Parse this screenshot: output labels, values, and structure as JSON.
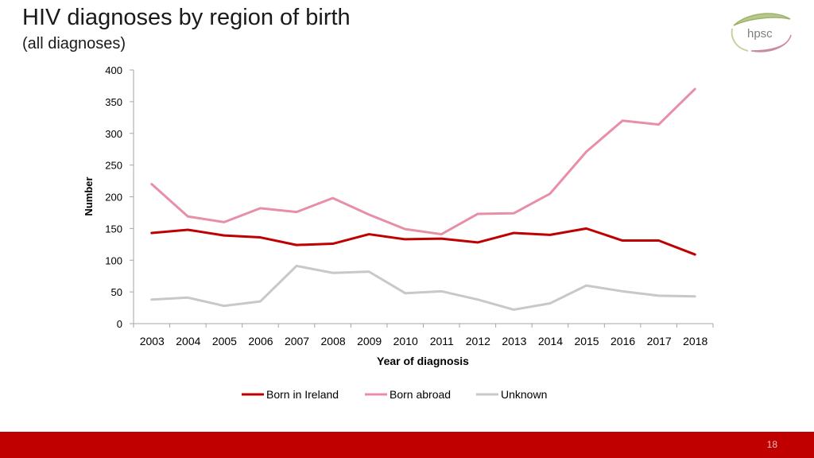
{
  "slide": {
    "title": "HIV diagnoses by region of birth",
    "subtitle": "(all diagnoses)",
    "logo_text": "hpsc",
    "page_number": "18",
    "footer_color": "#c00000"
  },
  "chart_data": {
    "type": "line",
    "title": "",
    "xlabel": "Year of diagnosis",
    "ylabel": "Number",
    "ylim": [
      0,
      400
    ],
    "yticks": [
      0,
      50,
      100,
      150,
      200,
      250,
      300,
      350,
      400
    ],
    "grid": false,
    "legend_position": "bottom",
    "categories": [
      "2003",
      "2004",
      "2005",
      "2006",
      "2007",
      "2008",
      "2009",
      "2010",
      "2011",
      "2012",
      "2013",
      "2014",
      "2015",
      "2016",
      "2017",
      "2018"
    ],
    "series": [
      {
        "name": "Born in Ireland",
        "color": "#c00000",
        "values": [
          143,
          148,
          139,
          136,
          124,
          126,
          141,
          133,
          134,
          128,
          143,
          140,
          150,
          131,
          131,
          109
        ]
      },
      {
        "name": "Born abroad",
        "color": "#e88fa8",
        "values": [
          220,
          169,
          160,
          182,
          176,
          198,
          172,
          149,
          141,
          173,
          174,
          205,
          271,
          320,
          314,
          370
        ]
      },
      {
        "name": "Unknown",
        "color": "#c8c8c8",
        "values": [
          38,
          41,
          28,
          35,
          91,
          80,
          82,
          48,
          51,
          38,
          22,
          32,
          60,
          51,
          44,
          43
        ]
      }
    ]
  }
}
